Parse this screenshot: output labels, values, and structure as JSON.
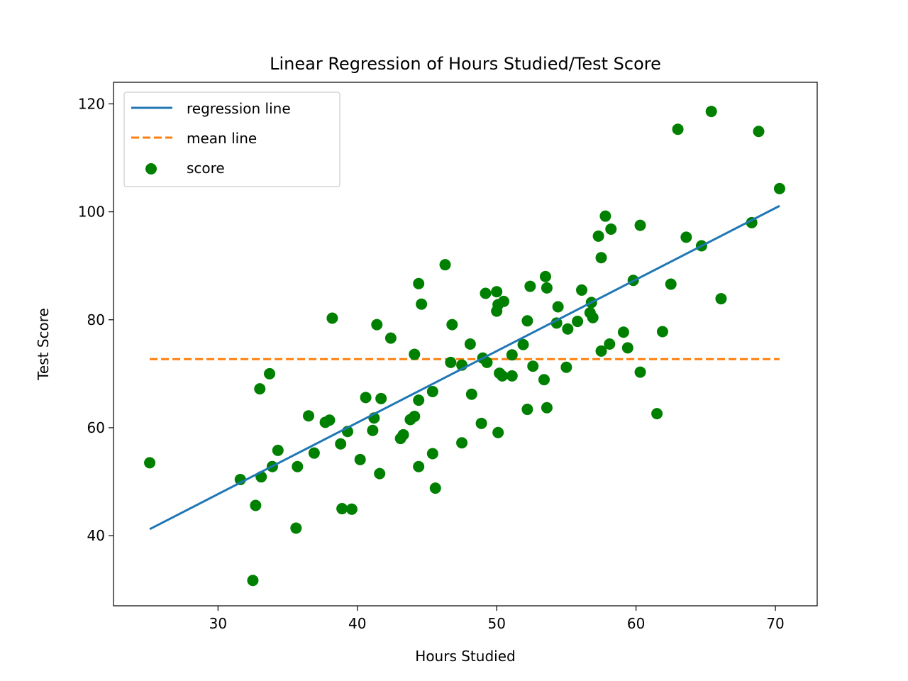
{
  "chart_data": {
    "type": "scatter",
    "title": "Linear Regression of Hours Studied/Test Score",
    "xlabel": "Hours Studied",
    "ylabel": "Test Score",
    "xlim": [
      22.5,
      73
    ],
    "ylim": [
      27,
      124
    ],
    "xticks": [
      30,
      40,
      50,
      60,
      70
    ],
    "yticks": [
      40,
      60,
      80,
      100,
      120
    ],
    "grid": false,
    "legend_position": "top-left",
    "legend": [
      "regression line",
      "mean line",
      "score"
    ],
    "colors": {
      "regression": "#1f77b4",
      "mean": "#ff7f0e",
      "score": "#008000"
    },
    "series": [
      {
        "name": "regression line",
        "type": "line",
        "style": "solid",
        "x": [
          25.1,
          70.3
        ],
        "y": [
          41.2,
          101.1
        ]
      },
      {
        "name": "mean line",
        "type": "line",
        "style": "dashed",
        "x": [
          25.1,
          70.3
        ],
        "y": [
          72.7,
          72.7
        ]
      },
      {
        "name": "score",
        "type": "scatter",
        "points": [
          [
            25.1,
            53.5
          ],
          [
            31.6,
            50.4
          ],
          [
            32.5,
            31.7
          ],
          [
            32.7,
            45.6
          ],
          [
            33.0,
            67.2
          ],
          [
            33.1,
            50.9
          ],
          [
            33.7,
            70.0
          ],
          [
            33.9,
            52.8
          ],
          [
            34.3,
            55.8
          ],
          [
            35.6,
            41.4
          ],
          [
            35.7,
            52.8
          ],
          [
            36.5,
            62.2
          ],
          [
            36.9,
            55.3
          ],
          [
            37.7,
            61.0
          ],
          [
            38.0,
            61.4
          ],
          [
            38.2,
            80.3
          ],
          [
            38.8,
            57.0
          ],
          [
            38.9,
            45.0
          ],
          [
            39.3,
            59.3
          ],
          [
            39.6,
            44.9
          ],
          [
            40.2,
            54.1
          ],
          [
            40.6,
            65.6
          ],
          [
            41.1,
            59.5
          ],
          [
            41.2,
            61.8
          ],
          [
            41.4,
            79.1
          ],
          [
            41.6,
            51.5
          ],
          [
            41.7,
            65.4
          ],
          [
            42.4,
            76.6
          ],
          [
            43.1,
            58.0
          ],
          [
            43.3,
            58.7
          ],
          [
            43.8,
            61.5
          ],
          [
            44.1,
            62.1
          ],
          [
            44.1,
            73.6
          ],
          [
            44.4,
            86.7
          ],
          [
            44.4,
            52.8
          ],
          [
            44.4,
            65.1
          ],
          [
            44.6,
            82.9
          ],
          [
            45.4,
            66.7
          ],
          [
            45.4,
            55.2
          ],
          [
            45.6,
            48.8
          ],
          [
            46.3,
            90.2
          ],
          [
            46.7,
            72.1
          ],
          [
            46.8,
            79.1
          ],
          [
            47.5,
            57.2
          ],
          [
            47.5,
            71.6
          ],
          [
            48.1,
            75.5
          ],
          [
            48.2,
            66.2
          ],
          [
            48.9,
            60.8
          ],
          [
            49.0,
            72.9
          ],
          [
            49.2,
            84.9
          ],
          [
            49.3,
            72.1
          ],
          [
            50.0,
            85.2
          ],
          [
            50.0,
            81.6
          ],
          [
            50.1,
            82.8
          ],
          [
            50.1,
            59.1
          ],
          [
            50.2,
            70.1
          ],
          [
            50.4,
            69.6
          ],
          [
            50.5,
            83.4
          ],
          [
            51.1,
            73.5
          ],
          [
            51.1,
            69.6
          ],
          [
            51.9,
            75.4
          ],
          [
            52.2,
            79.8
          ],
          [
            52.2,
            63.4
          ],
          [
            52.4,
            86.2
          ],
          [
            52.6,
            71.4
          ],
          [
            53.4,
            68.9
          ],
          [
            53.5,
            88.0
          ],
          [
            53.6,
            85.9
          ],
          [
            53.6,
            63.7
          ],
          [
            54.3,
            79.4
          ],
          [
            54.4,
            82.4
          ],
          [
            55.0,
            71.2
          ],
          [
            55.1,
            78.3
          ],
          [
            55.8,
            79.7
          ],
          [
            56.1,
            85.5
          ],
          [
            56.7,
            81.3
          ],
          [
            56.8,
            83.2
          ],
          [
            56.9,
            80.4
          ],
          [
            57.3,
            95.5
          ],
          [
            57.5,
            74.2
          ],
          [
            57.5,
            91.5
          ],
          [
            57.8,
            99.2
          ],
          [
            58.1,
            75.5
          ],
          [
            58.2,
            96.8
          ],
          [
            59.1,
            77.7
          ],
          [
            59.4,
            74.8
          ],
          [
            59.8,
            87.3
          ],
          [
            60.3,
            97.5
          ],
          [
            60.3,
            70.3
          ],
          [
            61.5,
            62.6
          ],
          [
            61.9,
            77.8
          ],
          [
            62.5,
            86.6
          ],
          [
            63.0,
            115.3
          ],
          [
            63.6,
            95.3
          ],
          [
            64.7,
            93.7
          ],
          [
            65.4,
            118.6
          ],
          [
            66.1,
            83.9
          ],
          [
            68.3,
            98.0
          ],
          [
            68.8,
            114.9
          ],
          [
            70.3,
            104.3
          ]
        ]
      }
    ]
  }
}
